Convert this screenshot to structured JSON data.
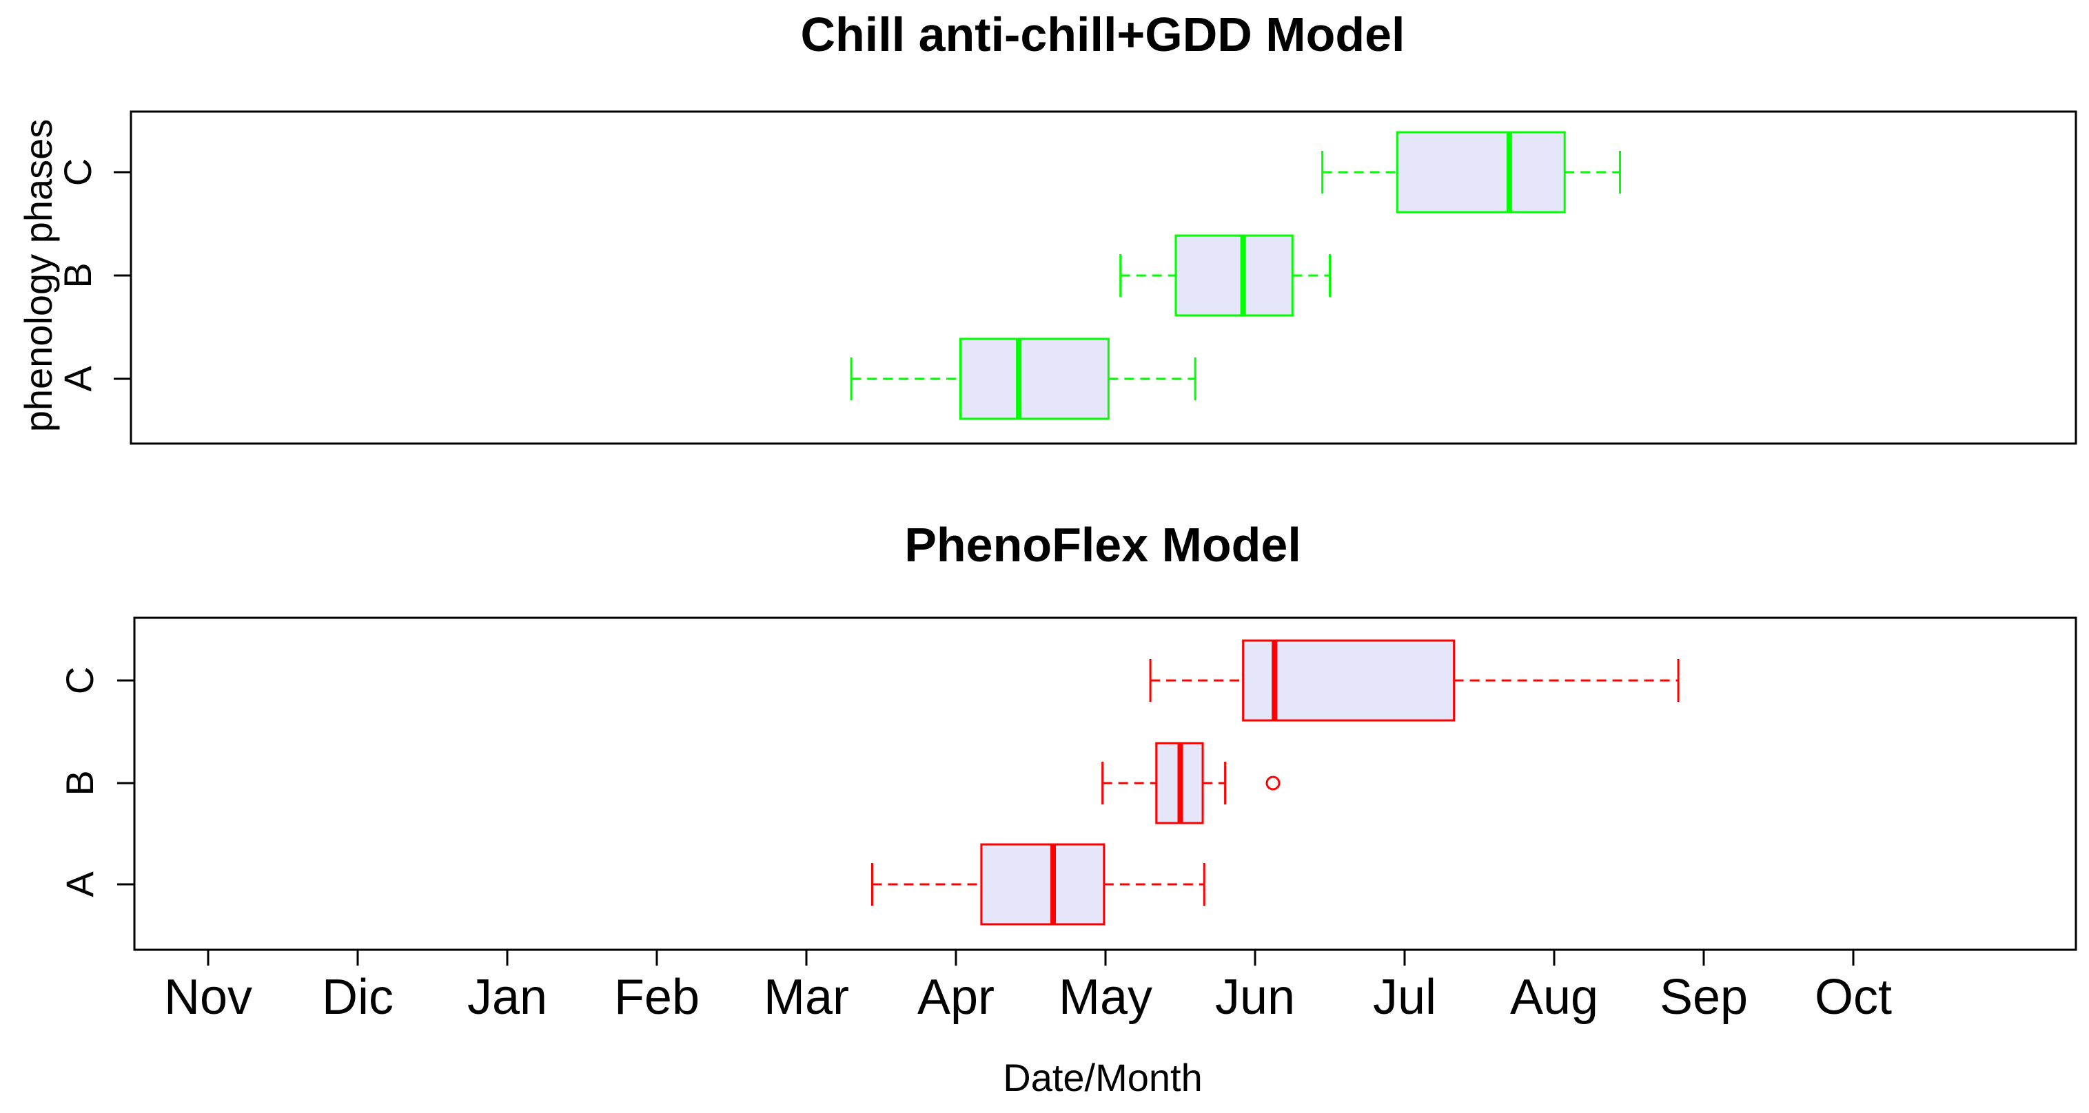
{
  "chart_data": [
    {
      "type": "boxplot",
      "title": "Chill anti-chill+GDD Model",
      "ylabel": "phenology phases",
      "xlabel": "",
      "color": "#00ff00",
      "fill": "#e6e6fa",
      "x_unit": "months since 1 Nov",
      "xlim": [
        -0.5,
        12.5
      ],
      "categories": [
        "A",
        "B",
        "C"
      ],
      "series": [
        {
          "name": "A",
          "whisker_low": 4.3,
          "q1": 5.03,
          "median": 5.42,
          "q3": 6.02,
          "whisker_high": 6.6,
          "outliers": []
        },
        {
          "name": "B",
          "whisker_low": 6.1,
          "q1": 6.47,
          "median": 6.92,
          "q3": 7.25,
          "whisker_high": 7.5,
          "outliers": []
        },
        {
          "name": "C",
          "whisker_low": 7.45,
          "q1": 7.95,
          "median": 8.7,
          "q3": 9.07,
          "whisker_high": 9.44,
          "outliers": []
        }
      ]
    },
    {
      "type": "boxplot",
      "title": "PhenoFlex Model",
      "ylabel": "",
      "xlabel": "Date/Month",
      "color": "#ff0000",
      "fill": "#e6e6fa",
      "x_unit": "months since 1 Nov",
      "xlim": [
        -0.5,
        12.5
      ],
      "categories": [
        "A",
        "B",
        "C"
      ],
      "month_ticks": [
        "Nov",
        "Dic",
        "Jan",
        "Feb",
        "Mar",
        "Apr",
        "May",
        "Jun",
        "Jul",
        "Aug",
        "Sep",
        "Oct"
      ],
      "series": [
        {
          "name": "A",
          "whisker_low": 4.44,
          "q1": 5.17,
          "median": 5.65,
          "q3": 5.99,
          "whisker_high": 6.66,
          "outliers": []
        },
        {
          "name": "B",
          "whisker_low": 5.98,
          "q1": 6.34,
          "median": 6.5,
          "q3": 6.65,
          "whisker_high": 6.8,
          "outliers": [
            7.12
          ]
        },
        {
          "name": "C",
          "whisker_low": 6.3,
          "q1": 6.92,
          "median": 7.13,
          "q3": 8.33,
          "whisker_high": 9.83,
          "outliers": []
        }
      ]
    }
  ]
}
